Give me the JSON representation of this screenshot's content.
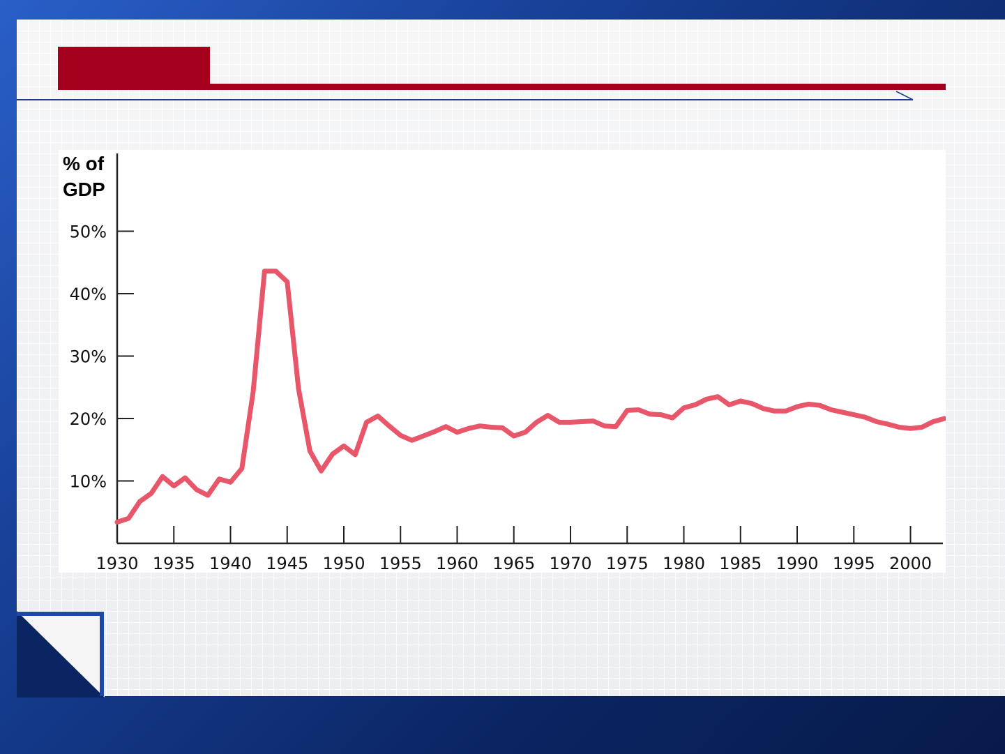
{
  "colors": {
    "background_blue": "#163e93",
    "title_red": "#a5001c",
    "series_line": "#e8566a",
    "axis": "#222222"
  },
  "chart_data": {
    "type": "line",
    "title": "",
    "xlabel": "",
    "ylabel_line1": "% of",
    "ylabel_line2": "GDP",
    "ylim": [
      0,
      50
    ],
    "xlim": [
      1930,
      2003
    ],
    "grid": false,
    "y_ticks": [
      {
        "value": 10,
        "label": "10%"
      },
      {
        "value": 20,
        "label": "20%"
      },
      {
        "value": 30,
        "label": "30%"
      },
      {
        "value": 40,
        "label": "40%"
      },
      {
        "value": 50,
        "label": "50%"
      }
    ],
    "x_ticks": [
      {
        "value": 1930,
        "label": "1930"
      },
      {
        "value": 1935,
        "label": "1935"
      },
      {
        "value": 1940,
        "label": "1940"
      },
      {
        "value": 1945,
        "label": "1945"
      },
      {
        "value": 1950,
        "label": "1950"
      },
      {
        "value": 1955,
        "label": "1955"
      },
      {
        "value": 1960,
        "label": "1960"
      },
      {
        "value": 1965,
        "label": "1965"
      },
      {
        "value": 1970,
        "label": "1970"
      },
      {
        "value": 1975,
        "label": "1975"
      },
      {
        "value": 1980,
        "label": "1980"
      },
      {
        "value": 1985,
        "label": "1985"
      },
      {
        "value": 1990,
        "label": "1990"
      },
      {
        "value": 1995,
        "label": "1995"
      },
      {
        "value": 2000,
        "label": "2000"
      }
    ],
    "series": [
      {
        "x": [
          1930,
          1931,
          1932,
          1933,
          1934,
          1935,
          1936,
          1937,
          1938,
          1939,
          1940,
          1941,
          1942,
          1943,
          1944,
          1945,
          1946,
          1947,
          1948,
          1949,
          1950,
          1951,
          1952,
          1953,
          1954,
          1955,
          1956,
          1957,
          1958,
          1959,
          1960,
          1961,
          1962,
          1963,
          1964,
          1965,
          1966,
          1967,
          1968,
          1969,
          1970,
          1971,
          1972,
          1973,
          1974,
          1975,
          1976,
          1977,
          1978,
          1979,
          1980,
          1981,
          1982,
          1983,
          1984,
          1985,
          1986,
          1987,
          1988,
          1989,
          1990,
          1991,
          1992,
          1993,
          1994,
          1995,
          1996,
          1997,
          1998,
          1999,
          2000,
          2001,
          2002,
          2003
        ],
        "y": [
          3.4,
          4.0,
          6.7,
          8.0,
          10.7,
          9.2,
          10.5,
          8.6,
          7.7,
          10.3,
          9.8,
          12.0,
          24.3,
          43.6,
          43.6,
          41.9,
          24.8,
          14.8,
          11.6,
          14.3,
          15.6,
          14.2,
          19.4,
          20.4,
          18.8,
          17.3,
          16.5,
          17.2,
          17.9,
          18.7,
          17.8,
          18.4,
          18.8,
          18.6,
          18.5,
          17.2,
          17.8,
          19.4,
          20.5,
          19.4,
          19.4,
          19.5,
          19.6,
          18.8,
          18.7,
          21.3,
          21.4,
          20.7,
          20.6,
          20.1,
          21.7,
          22.2,
          23.1,
          23.5,
          22.2,
          22.8,
          22.4,
          21.6,
          21.2,
          21.2,
          21.9,
          22.3,
          22.1,
          21.4,
          21.0,
          20.6,
          20.2,
          19.5,
          19.1,
          18.6,
          18.4,
          18.6,
          19.5,
          20.0
        ]
      }
    ]
  }
}
